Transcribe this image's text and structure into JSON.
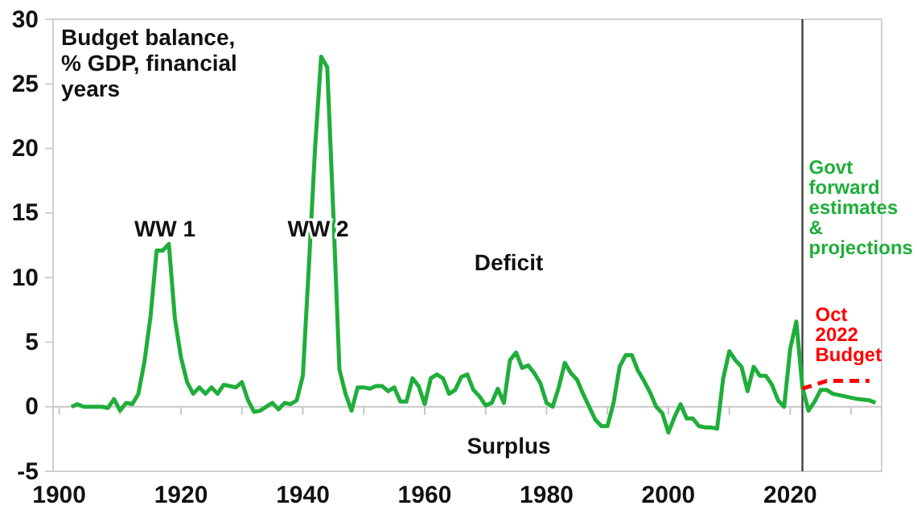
{
  "chart_data": {
    "type": "line",
    "title": "Budget balance, % GDP, financial years",
    "annotations": [
      "WW 1",
      "WW 2",
      "Deficit",
      "Surplus"
    ],
    "series": [
      {
        "color": "#1fae3a",
        "x": [
          1902,
          1903,
          1904,
          1905,
          1906,
          1907,
          1908,
          1909,
          1910,
          1911,
          1912,
          1913,
          1914,
          1915,
          1916,
          1917,
          1918,
          1919,
          1920,
          1921,
          1922,
          1923,
          1924,
          1925,
          1926,
          1927,
          1928,
          1929,
          1930,
          1931,
          1932,
          1933,
          1934,
          1935,
          1936,
          1937,
          1938,
          1939,
          1940,
          1941,
          1942,
          1943,
          1944,
          1945,
          1946,
          1947,
          1948,
          1949,
          1950,
          1951,
          1952,
          1953,
          1954,
          1955,
          1956,
          1957,
          1958,
          1959,
          1960,
          1961,
          1962,
          1963,
          1964,
          1965,
          1966,
          1967,
          1968,
          1969,
          1970,
          1971,
          1972,
          1973,
          1974,
          1975,
          1976,
          1977,
          1978,
          1979,
          1980,
          1981,
          1982,
          1983,
          1984,
          1985,
          1986,
          1987,
          1988,
          1989,
          1990,
          1991,
          1992,
          1993,
          1994,
          1995,
          1996,
          1997,
          1998,
          1999,
          2000,
          2001,
          2002,
          2003,
          2004,
          2005,
          2006,
          2007,
          2008,
          2009,
          2010,
          2011,
          2012,
          2013,
          2014,
          2015,
          2016,
          2017,
          2018,
          2019,
          2020,
          2021,
          2022,
          2023,
          2024,
          2025,
          2026,
          2027,
          2029,
          2031,
          2033,
          2034
        ],
        "values": [
          0,
          0.2,
          0,
          0,
          0,
          0,
          -0.1,
          0.6,
          -0.3,
          0.3,
          0.2,
          1.0,
          3.5,
          7,
          12.1,
          12.1,
          12.6,
          6.8,
          3.8,
          1.9,
          1.0,
          1.5,
          1.0,
          1.5,
          1.0,
          1.7,
          1.6,
          1.5,
          1.9,
          0.5,
          -0.4,
          -0.3,
          0,
          0.3,
          -0.2,
          0.3,
          0.2,
          0.5,
          2.4,
          11,
          20,
          27.1,
          26.3,
          15,
          2.9,
          1.0,
          -0.3,
          1.5,
          1.5,
          1.4,
          1.6,
          1.6,
          1.2,
          1.5,
          0.4,
          0.4,
          2.2,
          1.6,
          0.2,
          2.2,
          2.5,
          2.2,
          1.0,
          1.3,
          2.3,
          2.5,
          1.3,
          0.8,
          0.1,
          0.3,
          1.4,
          0.3,
          3.6,
          4.2,
          3.0,
          3.2,
          2.6,
          1.8,
          0.3,
          0,
          1.5,
          3.4,
          2.6,
          2.1,
          1.0,
          0,
          -1.0,
          -1.5,
          -1.5,
          0.3,
          3.1,
          4.0,
          4.0,
          2.8,
          2.0,
          1.1,
          0,
          -0.5,
          -2.0,
          -0.8,
          0.2,
          -0.9,
          -0.9,
          -1.5,
          -1.6,
          -1.6,
          -1.7,
          2.2,
          4.3,
          3.6,
          3.1,
          1.2,
          3.1,
          2.4,
          2.4,
          1.7,
          0.5,
          0,
          4.5,
          6.6,
          1.5,
          -0.3,
          0.4,
          1.3,
          1.3,
          1.0,
          0.8,
          0.6,
          0.5,
          0.3
        ]
      },
      {
        "name": "Oct 2022 Budget",
        "color": "#ff0000",
        "line_style": "dashed",
        "x": [
          2022,
          2026,
          2033
        ],
        "values": [
          1.4,
          2.0,
          2.0
        ]
      }
    ],
    "ref_lines": [
      {
        "axis": "x",
        "value": 2022,
        "label": "Govt forward estimates & projections",
        "color": "#404040"
      }
    ],
    "xlim": [
      1899,
      2035
    ],
    "ylim": [
      -5,
      30
    ],
    "xticks": [
      1900,
      {
        "value": 1910,
        "label": null
      },
      1920,
      {
        "value": 1930,
        "label": null
      },
      1940,
      {
        "value": 1950,
        "label": null
      },
      1960,
      {
        "value": 1970,
        "label": null
      },
      1980,
      {
        "value": 1990,
        "label": null
      },
      2000,
      {
        "value": 2010,
        "label": null
      },
      2020,
      {
        "value": 2030,
        "label": null
      }
    ],
    "yticks": [
      -5,
      0,
      5,
      10,
      15,
      20,
      25,
      30
    ],
    "grid": false
  }
}
